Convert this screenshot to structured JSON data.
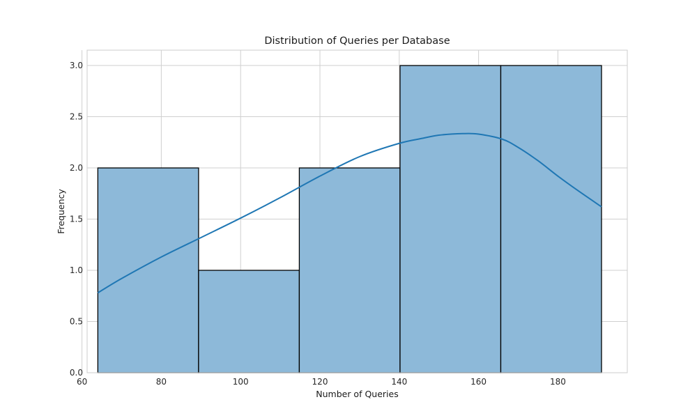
{
  "chart_data": {
    "type": "bar",
    "subtype": "histogram-with-kde",
    "title": "Distribution of Queries per Database",
    "xlabel": "Number of Queries",
    "ylabel": "Frequency",
    "xlim": [
      61.3,
      197.5
    ],
    "ylim": [
      0,
      3.15
    ],
    "xticks": [
      60,
      80,
      100,
      120,
      140,
      160,
      180
    ],
    "yticks": [
      0.0,
      0.5,
      1.0,
      1.5,
      2.0,
      2.5,
      3.0
    ],
    "xtick_labels": [
      "60",
      "80",
      "100",
      "120",
      "140",
      "160",
      "180"
    ],
    "ytick_labels": [
      "0.0",
      "0.5",
      "1.0",
      "1.5",
      "2.0",
      "2.5",
      "3.0"
    ],
    "grid": true,
    "bins": [
      {
        "start": 64.0,
        "end": 89.4,
        "count": 2
      },
      {
        "start": 89.4,
        "end": 114.8,
        "count": 1
      },
      {
        "start": 114.8,
        "end": 140.2,
        "count": 2
      },
      {
        "start": 140.2,
        "end": 165.6,
        "count": 3
      },
      {
        "start": 165.6,
        "end": 191.0,
        "count": 3
      }
    ],
    "kde": {
      "x": [
        64,
        70,
        80,
        90,
        100,
        110,
        120,
        130,
        140,
        146,
        150,
        156,
        160,
        166,
        170,
        175,
        180,
        185,
        191
      ],
      "y": [
        0.78,
        0.92,
        1.13,
        1.32,
        1.51,
        1.71,
        1.92,
        2.11,
        2.24,
        2.29,
        2.32,
        2.335,
        2.33,
        2.28,
        2.2,
        2.07,
        1.92,
        1.78,
        1.62
      ]
    },
    "colors": {
      "bar_fill": "#8db9d9",
      "bar_edge": "#000000",
      "kde_line": "#1f77b4",
      "grid": "#cfcfcf"
    }
  }
}
